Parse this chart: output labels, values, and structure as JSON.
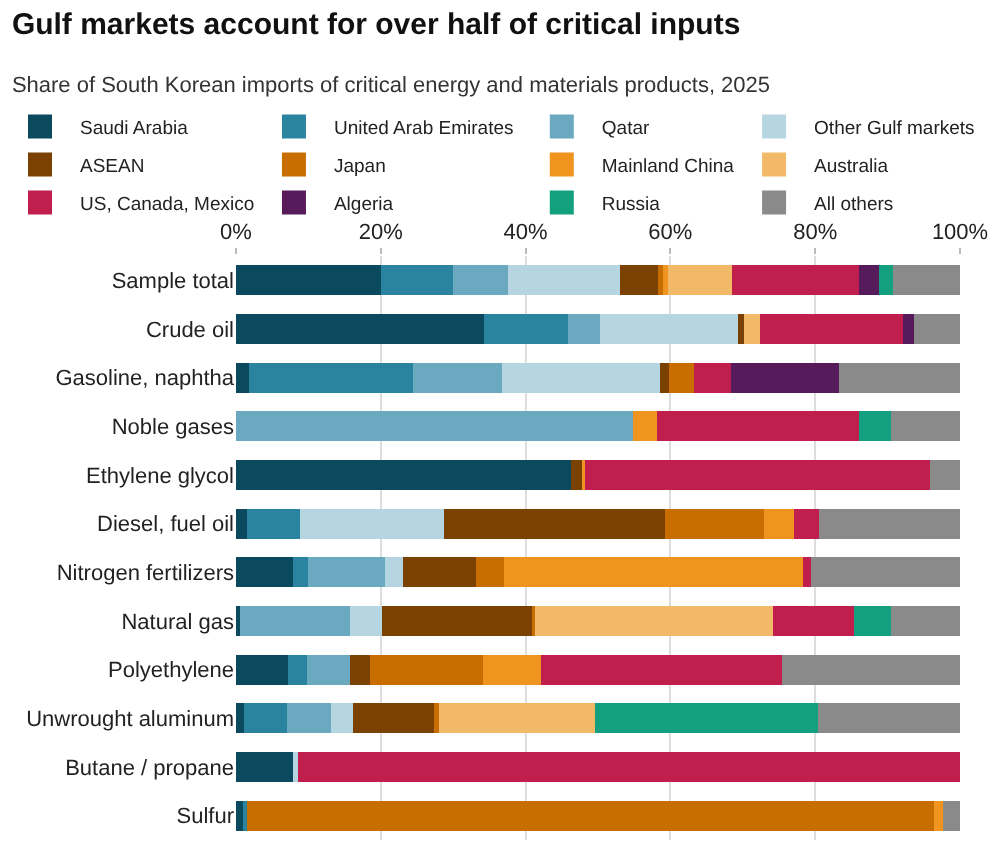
{
  "chart_data": {
    "type": "bar",
    "orientation": "horizontal",
    "stacked": true,
    "title": "Gulf markets account for over half of critical inputs",
    "subtitle": "Share of South Korean imports of critical energy and materials products, 2025",
    "categories": [
      "Sample total",
      "Crude oil",
      "Gasoline, naphtha",
      "Noble gases",
      "Ethylene glycol",
      "Diesel, fuel oil",
      "Nitrogen fertilizers",
      "Natural gas",
      "Polyethylene",
      "Unwrought aluminum",
      "Butane / propane",
      "Sulfur"
    ],
    "series": [
      {
        "name": "Saudi Arabia",
        "color": "#0b4a5e",
        "values": [
          20,
          34.2,
          1.8,
          0,
          46.3,
          1.5,
          7.9,
          0.5,
          7.2,
          1.1,
          7.9,
          0.9
        ]
      },
      {
        "name": "United Arab Emirates",
        "color": "#2a84a0",
        "values": [
          10,
          11.7,
          22.7,
          0,
          0,
          7.4,
          2.1,
          0,
          2.6,
          6.0,
          0,
          0.6
        ]
      },
      {
        "name": "Qatar",
        "color": "#6aa9c0",
        "values": [
          7.5,
          4.4,
          12.2,
          54.9,
          0,
          0,
          10.6,
          15.3,
          6.0,
          6.0,
          0,
          0
        ]
      },
      {
        "name": "Other Gulf markets",
        "color": "#b5d6e0",
        "values": [
          15.5,
          19.0,
          21.9,
          0,
          0,
          19.8,
          2.4,
          4.4,
          0,
          3.0,
          0.7,
          0
        ]
      },
      {
        "name": "ASEAN",
        "color": "#7a4100",
        "values": [
          5.5,
          0.8,
          1.2,
          0,
          1.5,
          30.6,
          10.1,
          20.7,
          2.7,
          11.3,
          0,
          0
        ]
      },
      {
        "name": "Japan",
        "color": "#c86e00",
        "values": [
          0.5,
          0,
          3.4,
          0,
          0,
          13.6,
          3.9,
          0.4,
          15.6,
          0.7,
          0,
          94.9
        ]
      },
      {
        "name": "Mainland China",
        "color": "#f09420",
        "values": [
          0.7,
          0,
          0,
          3.3,
          0.4,
          4.2,
          41.3,
          0,
          8.0,
          0,
          0,
          1.3
        ]
      },
      {
        "name": "Australia",
        "color": "#f2b968",
        "values": [
          8.8,
          2.3,
          0,
          0,
          0,
          0,
          0,
          32.9,
          0,
          21.5,
          0,
          0
        ]
      },
      {
        "name": "US, Canada, Mexico",
        "color": "#c01f4e",
        "values": [
          17.5,
          19.7,
          5.2,
          27.8,
          47.7,
          3.4,
          1.1,
          11.1,
          33.3,
          0,
          91.4,
          0
        ]
      },
      {
        "name": "Algeria",
        "color": "#571a5a",
        "values": [
          2.8,
          1.6,
          14.9,
          0,
          0,
          0,
          0,
          0,
          0,
          0,
          0,
          0
        ]
      },
      {
        "name": "Russia",
        "color": "#12a07e",
        "values": [
          2,
          0,
          0,
          4.5,
          0,
          0,
          0,
          5.2,
          0,
          30.8,
          0,
          0
        ]
      },
      {
        "name": "All others",
        "color": "#8a8a8a",
        "values": [
          9.2,
          6.3,
          16.7,
          9.5,
          4.1,
          19.5,
          20.6,
          9.5,
          24.6,
          19.6,
          0,
          2.3
        ]
      }
    ],
    "xlim": [
      0,
      100
    ],
    "xticks": [
      {
        "value": 0,
        "label": "0%"
      },
      {
        "value": 20,
        "label": "20%"
      },
      {
        "value": 40,
        "label": "40%"
      },
      {
        "value": 60,
        "label": "60%"
      },
      {
        "value": 80,
        "label": "80%"
      },
      {
        "value": 100,
        "label": "100%"
      }
    ],
    "grid": "x",
    "legend": "top"
  }
}
